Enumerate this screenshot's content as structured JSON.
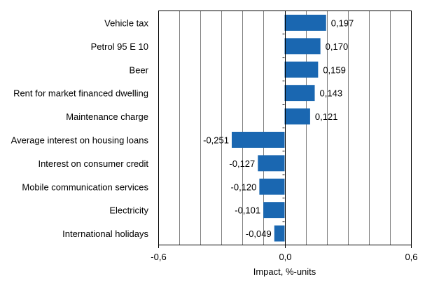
{
  "chart_data": {
    "type": "bar",
    "orientation": "horizontal",
    "categories": [
      "Vehicle tax",
      "Petrol 95 E 10",
      "Beer",
      "Rent for market financed dwelling",
      "Maintenance charge",
      "Average interest on housing loans",
      "Interest on consumer credit",
      "Mobile communication services",
      "Electricity",
      "International holidays"
    ],
    "values": [
      0.197,
      0.17,
      0.159,
      0.143,
      0.121,
      -0.251,
      -0.127,
      -0.12,
      -0.101,
      -0.049
    ],
    "data_labels": [
      "0,197",
      "0,170",
      "0,159",
      "0,143",
      "0,121",
      "-0,251",
      "-0,127",
      "-0,120",
      "-0,101",
      "-0,049"
    ],
    "xlabel": "Impact, %-units",
    "ylabel": "",
    "xlim": [
      -0.6,
      0.6
    ],
    "x_ticks": [
      -0.6,
      0.0,
      0.6
    ],
    "x_tick_labels": [
      "-0,6",
      "0,0",
      "0,6"
    ],
    "grid_step": 0.1,
    "grid": true,
    "bar_color": "#1a67b1",
    "grid_color": "#808080"
  }
}
